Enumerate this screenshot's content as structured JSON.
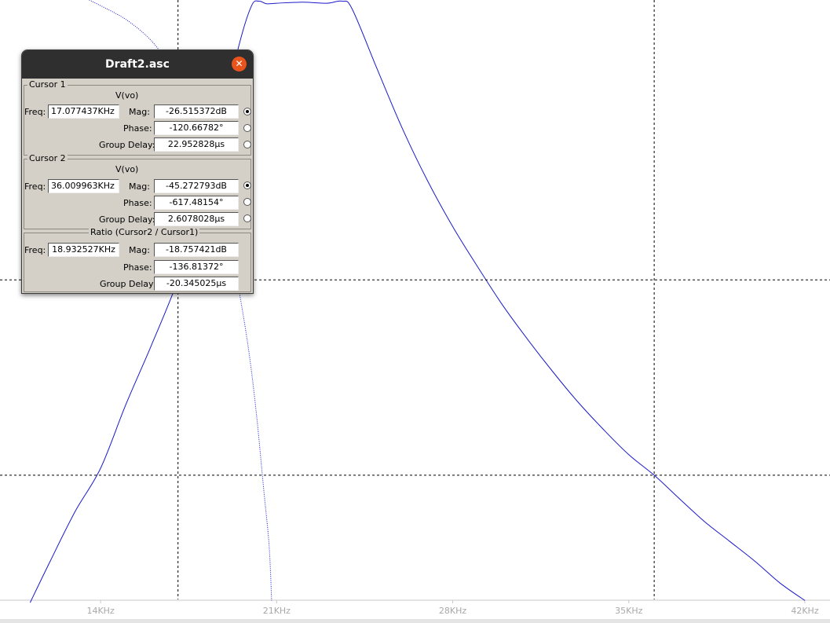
{
  "window": {
    "title": "Draft2.asc",
    "close_icon": "close-icon"
  },
  "cursor1": {
    "group_label": "Cursor 1",
    "trace": "V(vo)",
    "freq_label": "Freq:",
    "freq_value": "17.077437KHz",
    "mag_label": "Mag:",
    "mag_value": "-26.515372dB",
    "phase_label": "Phase:",
    "phase_value": "-120.66782°",
    "gd_label": "Group Delay:",
    "gd_value": "22.952828µs",
    "selected_radio": "mag"
  },
  "cursor2": {
    "group_label": "Cursor 2",
    "trace": "V(vo)",
    "freq_label": "Freq:",
    "freq_value": "36.009963KHz",
    "mag_label": "Mag:",
    "mag_value": "-45.272793dB",
    "phase_label": "Phase:",
    "phase_value": "-617.48154°",
    "gd_label": "Group Delay:",
    "gd_value": "2.6078028µs",
    "selected_radio": "mag"
  },
  "ratio": {
    "group_label": "Ratio (Cursor2 / Cursor1)",
    "freq_label": "Freq:",
    "freq_value": "18.932527KHz",
    "mag_label": "Mag:",
    "mag_value": "-18.757421dB",
    "phase_label": "Phase:",
    "phase_value": "-136.81372°",
    "gd_label": "Group Delay:",
    "gd_value": "-20.345025µs"
  },
  "colors": {
    "trace": "#1a1acc",
    "cursor": "#000000",
    "tick": "#a8a8a8",
    "accent_close": "#e9531c"
  },
  "chart_data": {
    "type": "line",
    "x_tick_labels": [
      "14KHz",
      "21KHz",
      "28KHz",
      "35KHz",
      "42KHz"
    ],
    "series": [
      {
        "style": "solid",
        "x": [
          11.2,
          12,
          13,
          14,
          15,
          16,
          17.077,
          18,
          19,
          19.5,
          20,
          20.3,
          20.6,
          21,
          22,
          23,
          23.6,
          24,
          25,
          26,
          27,
          28,
          29,
          30,
          31,
          32,
          33,
          34,
          35,
          36.01,
          37,
          38,
          39,
          40,
          41,
          42
        ],
        "y": [
          -57.5,
          -53.5,
          -48.7,
          -44.6,
          -38.5,
          -32.9,
          -26.5,
          -19.5,
          -9.5,
          -4.0,
          -0.2,
          0.25,
          0.0,
          0.05,
          0.15,
          0.05,
          0.25,
          -0.5,
          -6.3,
          -12.0,
          -17.0,
          -21.4,
          -25.3,
          -29.0,
          -32.3,
          -35.4,
          -38.3,
          -40.9,
          -43.3,
          -45.27,
          -47.5,
          -49.7,
          -51.6,
          -53.5,
          -55.6,
          -57.3
        ]
      },
      {
        "style": "dotted",
        "x": [
          13.55,
          14.5,
          15,
          15.5,
          16,
          16.5,
          17.077,
          17.5,
          18,
          18.5,
          19,
          19.5,
          19.9,
          20.2,
          20.5,
          20.7,
          20.8
        ],
        "y": [
          0.36,
          -0.8,
          -1.5,
          -2.4,
          -3.5,
          -5.0,
          -7.0,
          -9.0,
          -12.0,
          -16.0,
          -21.0,
          -27.5,
          -33.5,
          -39.5,
          -47.0,
          -52.0,
          -57.3
        ]
      }
    ],
    "cursors": [
      {
        "x": 17.077437,
        "y": -26.515372
      },
      {
        "x": 36.009963,
        "y": -45.272793
      }
    ],
    "xlim": [
      10,
      43
    ],
    "ylim": [
      -57.2,
      0.36
    ],
    "xlabel": "",
    "ylabel": ""
  }
}
